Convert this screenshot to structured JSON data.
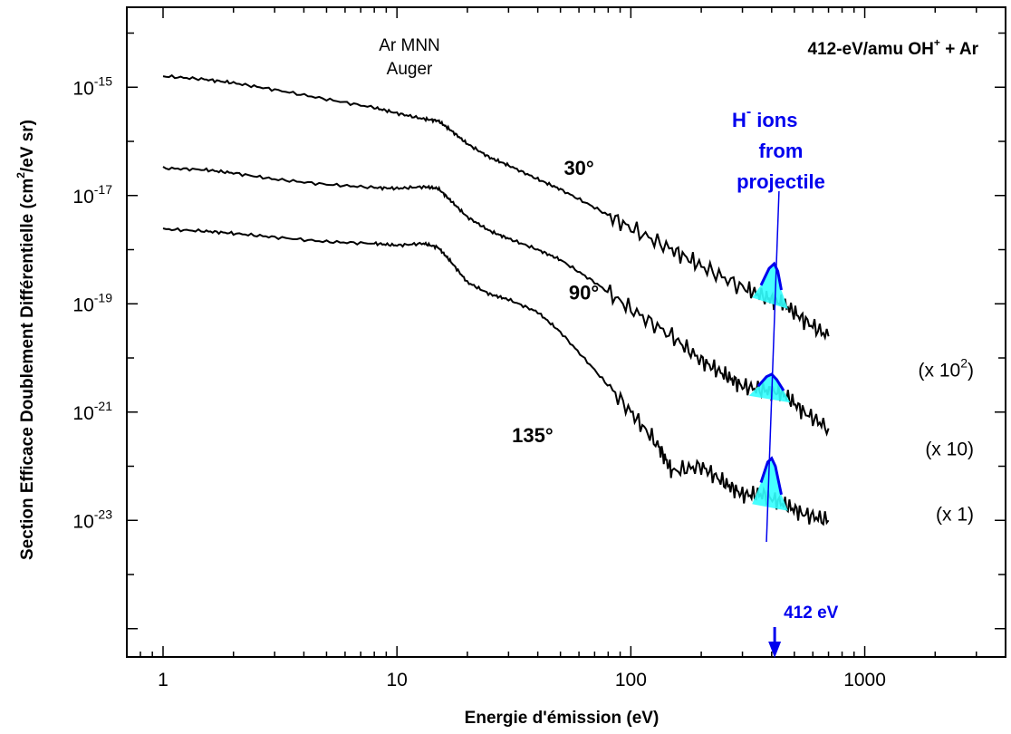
{
  "chart_data": {
    "type": "line",
    "title": "412-eV/amu OH+ + Ar",
    "xlabel": "Energie d'émission (eV)",
    "ylabel": "Section Efficace Doublement Différentielle (cm2/eV sr)",
    "xscale": "log",
    "yscale": "log",
    "xlim": [
      0.7,
      4000
    ],
    "ylim": [
      3e-26,
      3e-14
    ],
    "x_ticks": [
      "1",
      "10",
      "100",
      "1000"
    ],
    "y_ticks": [
      {
        "base": "10",
        "exp": "-15"
      },
      {
        "base": "10",
        "exp": "-17"
      },
      {
        "base": "10",
        "exp": "-19"
      },
      {
        "base": "10",
        "exp": "-21"
      },
      {
        "base": "10",
        "exp": "-23"
      }
    ],
    "grid": false,
    "series": [
      {
        "name": "30°",
        "scale_label": "(x 10",
        "scale_exp": "2",
        "scale_close": ")",
        "points": [
          [
            1,
            1.6e-15
          ],
          [
            1.5,
            1.4e-15
          ],
          [
            2,
            1.2e-15
          ],
          [
            3,
            9e-16
          ],
          [
            5,
            6e-16
          ],
          [
            8,
            4.2e-16
          ],
          [
            10,
            3.3e-16
          ],
          [
            13,
            2.6e-16
          ],
          [
            15,
            2.4e-16
          ],
          [
            17,
            1.6e-16
          ],
          [
            20,
            9e-17
          ],
          [
            25,
            5e-17
          ],
          [
            30,
            3.6e-17
          ],
          [
            40,
            2e-17
          ],
          [
            50,
            1.3e-17
          ],
          [
            70,
            6e-18
          ],
          [
            100,
            2.5e-18
          ],
          [
            150,
            1e-18
          ],
          [
            200,
            5e-19
          ],
          [
            300,
            2e-19
          ],
          [
            380,
            1.3e-19
          ],
          [
            450,
            1e-19
          ],
          [
            550,
            5e-20
          ],
          [
            700,
            2.5e-20
          ]
        ],
        "peak": {
          "x": [
            330,
            360,
            390,
            410,
            425,
            440,
            470
          ],
          "y": [
            1.3e-19,
            2.2e-19,
            4.5e-19,
            5.5e-19,
            4e-19,
            1.8e-19,
            8e-20
          ]
        }
      },
      {
        "name": "90°",
        "scale_label": "(x 10)",
        "scale_exp": "",
        "scale_close": "",
        "points": [
          [
            1,
            3.2e-17
          ],
          [
            1.5,
            3e-17
          ],
          [
            2,
            2.6e-17
          ],
          [
            3,
            2e-17
          ],
          [
            5,
            1.6e-17
          ],
          [
            8,
            1.4e-17
          ],
          [
            10,
            1.35e-17
          ],
          [
            13,
            1.45e-17
          ],
          [
            15,
            1.35e-17
          ],
          [
            17,
            8e-18
          ],
          [
            20,
            4e-18
          ],
          [
            25,
            2.2e-18
          ],
          [
            30,
            1.6e-18
          ],
          [
            40,
            1e-18
          ],
          [
            50,
            6.5e-19
          ],
          [
            70,
            2.5e-19
          ],
          [
            100,
            8e-20
          ],
          [
            150,
            2.5e-20
          ],
          [
            200,
            9e-21
          ],
          [
            250,
            5e-21
          ],
          [
            300,
            3e-21
          ],
          [
            380,
            2.5e-21
          ],
          [
            450,
            2.2e-21
          ],
          [
            550,
            1e-21
          ],
          [
            700,
            5e-22
          ]
        ],
        "peak": {
          "x": [
            320,
            350,
            380,
            400,
            420,
            450,
            480
          ],
          "y": [
            2e-21,
            3e-21,
            4.5e-21,
            5e-21,
            4e-21,
            2.5e-21,
            1.5e-21
          ]
        }
      },
      {
        "name": "135°",
        "scale_label": "(x 1)",
        "scale_exp": "",
        "scale_close": "",
        "points": [
          [
            1,
            2.4e-18
          ],
          [
            1.5,
            2.2e-18
          ],
          [
            2,
            2e-18
          ],
          [
            3,
            1.7e-18
          ],
          [
            5,
            1.4e-18
          ],
          [
            8,
            1.3e-18
          ],
          [
            10,
            1.2e-18
          ],
          [
            13,
            1.3e-18
          ],
          [
            15,
            1.1e-18
          ],
          [
            17,
            6e-19
          ],
          [
            20,
            2.5e-19
          ],
          [
            25,
            1.5e-19
          ],
          [
            30,
            1.2e-19
          ],
          [
            40,
            7e-20
          ],
          [
            50,
            3e-20
          ],
          [
            70,
            6e-21
          ],
          [
            100,
            1e-21
          ],
          [
            130,
            2.5e-22
          ],
          [
            150,
            8e-23
          ],
          [
            200,
            1e-22
          ],
          [
            250,
            5e-23
          ],
          [
            300,
            3e-23
          ],
          [
            370,
            3e-23
          ],
          [
            450,
            2e-23
          ],
          [
            550,
            1.3e-23
          ],
          [
            700,
            1e-23
          ]
        ],
        "peak": {
          "x": [
            330,
            360,
            385,
            400,
            415,
            440,
            470
          ],
          "y": [
            2e-23,
            5e-23,
            1.2e-22,
            1.4e-22,
            1e-22,
            3e-23,
            1.5e-23
          ]
        }
      }
    ],
    "annotations": [
      {
        "text_lines": [
          "Ar MNN",
          "Auger"
        ],
        "x": 15,
        "y": 1e-15
      },
      {
        "text_lines": [
          "ions",
          "from",
          "projectile"
        ],
        "prefix": "H",
        "prefix_sup": "-",
        "x": 400,
        "y": 1e-16,
        "color": "#0000ee"
      },
      {
        "text": "412 eV",
        "x": 412,
        "arrow": true,
        "color": "#0000ee"
      }
    ],
    "colors": {
      "series": "#000000",
      "peak_line": "#0000ee",
      "peak_fill": "#33ffff",
      "marker": "#0000ee"
    }
  },
  "title_parts": {
    "main": "412-eV/amu OH",
    "sup": "+",
    "tail": " + Ar"
  },
  "ylabel_parts": {
    "main": "Section Efficace Doublement Différentielle (cm",
    "sup": "2",
    "tail": "/eV sr)"
  }
}
